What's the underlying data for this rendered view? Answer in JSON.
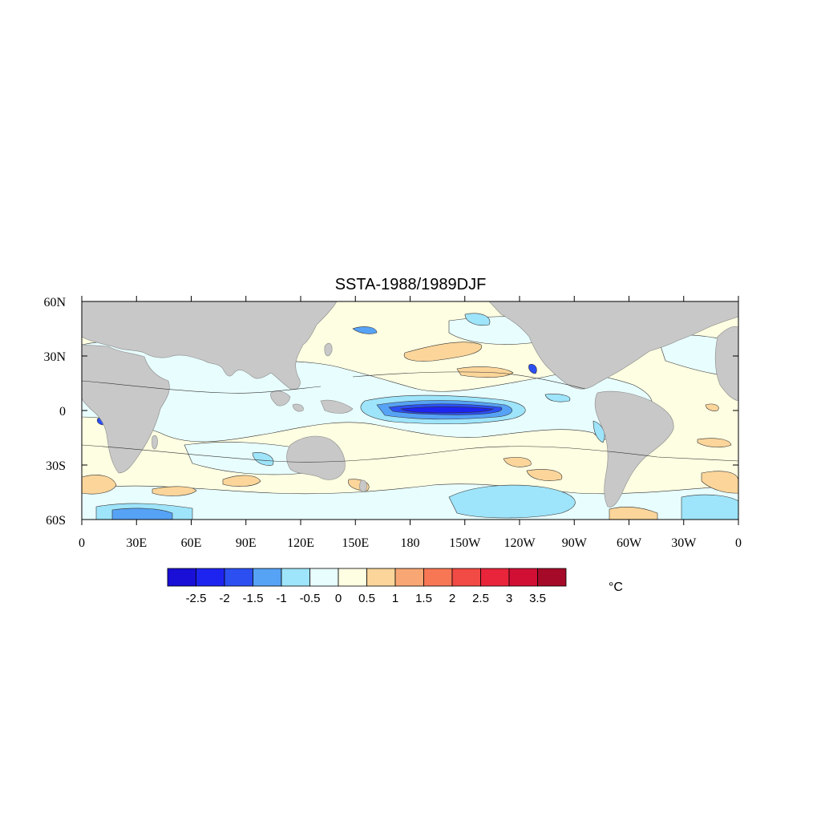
{
  "title": "SSTA-1988/1989DJF",
  "units": "°C",
  "colors": {
    "land": "#c8c8c8",
    "levels": [
      "#1a0fd6",
      "#1e24f0",
      "#2c4ff2",
      "#56a2f5",
      "#9ee4fa",
      "#e8fdfe",
      "#fefee2",
      "#fbd59a",
      "#f8a774",
      "#f77755",
      "#f24a44",
      "#e8253a",
      "#d10f34",
      "#a50a28"
    ]
  },
  "map": {
    "lon_labels": [
      "0",
      "30E",
      "60E",
      "90E",
      "120E",
      "150E",
      "180",
      "150W",
      "120W",
      "90W",
      "60W",
      "30W",
      "0"
    ],
    "lat_labels": [
      "60N",
      "30N",
      "0",
      "30S",
      "60S"
    ]
  },
  "colorbar": {
    "labels": [
      "-2.5",
      "-2",
      "-1.5",
      "-1",
      "-0.5",
      "0",
      "0.5",
      "1",
      "1.5",
      "2",
      "2.5",
      "3",
      "3.5"
    ]
  }
}
